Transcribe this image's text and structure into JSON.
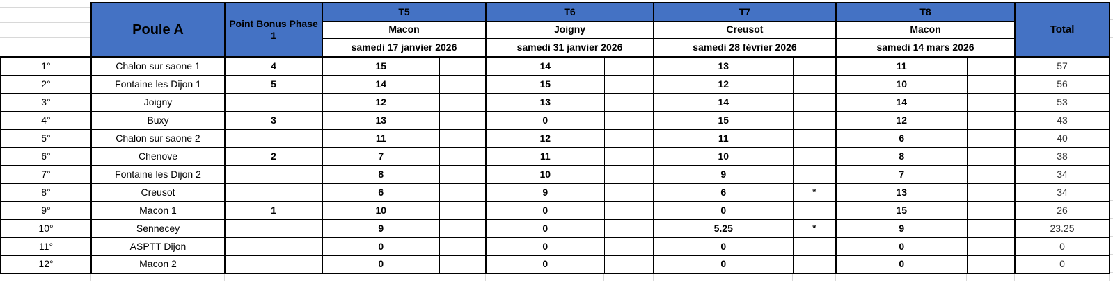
{
  "colors": {
    "header_blue": "#4472C4",
    "border_black": "#000000",
    "gridline_gray": "#d8d8d8"
  },
  "table": {
    "title": "Poule A",
    "bonus_header": "Point Bonus Phase 1",
    "total_header": "Total",
    "tournaments": [
      {
        "id": "T5",
        "venue": "Macon",
        "date": "samedi 17 janvier 2026"
      },
      {
        "id": "T6",
        "venue": "Joigny",
        "date": "samedi 31 janvier 2026"
      },
      {
        "id": "T7",
        "venue": "Creusot",
        "date": "samedi 28 février 2026"
      },
      {
        "id": "T8",
        "venue": "Macon",
        "date": "samedi 14 mars 2026"
      }
    ],
    "rows": [
      {
        "rank": "1°",
        "team": "Chalon sur saone 1",
        "bonus": "4",
        "t": [
          {
            "v": "15",
            "s": ""
          },
          {
            "v": "14",
            "s": ""
          },
          {
            "v": "13",
            "s": ""
          },
          {
            "v": "11",
            "s": ""
          }
        ],
        "total": "57"
      },
      {
        "rank": "2°",
        "team": "Fontaine les Dijon 1",
        "bonus": "5",
        "t": [
          {
            "v": "14",
            "s": ""
          },
          {
            "v": "15",
            "s": ""
          },
          {
            "v": "12",
            "s": ""
          },
          {
            "v": "10",
            "s": ""
          }
        ],
        "total": "56"
      },
      {
        "rank": "3°",
        "team": "Joigny",
        "bonus": "",
        "t": [
          {
            "v": "12",
            "s": ""
          },
          {
            "v": "13",
            "s": ""
          },
          {
            "v": "14",
            "s": ""
          },
          {
            "v": "14",
            "s": ""
          }
        ],
        "total": "53"
      },
      {
        "rank": "4°",
        "team": "Buxy",
        "bonus": "3",
        "t": [
          {
            "v": "13",
            "s": ""
          },
          {
            "v": "0",
            "s": ""
          },
          {
            "v": "15",
            "s": ""
          },
          {
            "v": "12",
            "s": ""
          }
        ],
        "total": "43"
      },
      {
        "rank": "5°",
        "team": "Chalon sur saone 2",
        "bonus": "",
        "t": [
          {
            "v": "11",
            "s": ""
          },
          {
            "v": "12",
            "s": ""
          },
          {
            "v": "11",
            "s": ""
          },
          {
            "v": "6",
            "s": ""
          }
        ],
        "total": "40"
      },
      {
        "rank": "6°",
        "team": "Chenove",
        "bonus": "2",
        "t": [
          {
            "v": "7",
            "s": ""
          },
          {
            "v": "11",
            "s": ""
          },
          {
            "v": "10",
            "s": ""
          },
          {
            "v": "8",
            "s": ""
          }
        ],
        "total": "38"
      },
      {
        "rank": "7°",
        "team": "Fontaine les Dijon 2",
        "bonus": "",
        "t": [
          {
            "v": "8",
            "s": ""
          },
          {
            "v": "10",
            "s": ""
          },
          {
            "v": "9",
            "s": ""
          },
          {
            "v": "7",
            "s": ""
          }
        ],
        "total": "34"
      },
      {
        "rank": "8°",
        "team": "Creusot",
        "bonus": "",
        "t": [
          {
            "v": "6",
            "s": ""
          },
          {
            "v": "9",
            "s": ""
          },
          {
            "v": "6",
            "s": "*"
          },
          {
            "v": "13",
            "s": ""
          }
        ],
        "total": "34"
      },
      {
        "rank": "9°",
        "team": "Macon 1",
        "bonus": "1",
        "t": [
          {
            "v": "10",
            "s": ""
          },
          {
            "v": "0",
            "s": ""
          },
          {
            "v": "0",
            "s": ""
          },
          {
            "v": "15",
            "s": ""
          }
        ],
        "total": "26"
      },
      {
        "rank": "10°",
        "team": "Sennecey",
        "bonus": "",
        "t": [
          {
            "v": "9",
            "s": ""
          },
          {
            "v": "0",
            "s": ""
          },
          {
            "v": "5.25",
            "s": "*"
          },
          {
            "v": "9",
            "s": ""
          }
        ],
        "total": "23.25"
      },
      {
        "rank": "11°",
        "team": "ASPTT Dijon",
        "bonus": "",
        "t": [
          {
            "v": "0",
            "s": ""
          },
          {
            "v": "0",
            "s": ""
          },
          {
            "v": "0",
            "s": ""
          },
          {
            "v": "0",
            "s": ""
          }
        ],
        "total": "0"
      },
      {
        "rank": "12°",
        "team": "Macon 2",
        "bonus": "",
        "t": [
          {
            "v": "0",
            "s": ""
          },
          {
            "v": "0",
            "s": ""
          },
          {
            "v": "0",
            "s": ""
          },
          {
            "v": "0",
            "s": ""
          }
        ],
        "total": "0"
      }
    ]
  }
}
